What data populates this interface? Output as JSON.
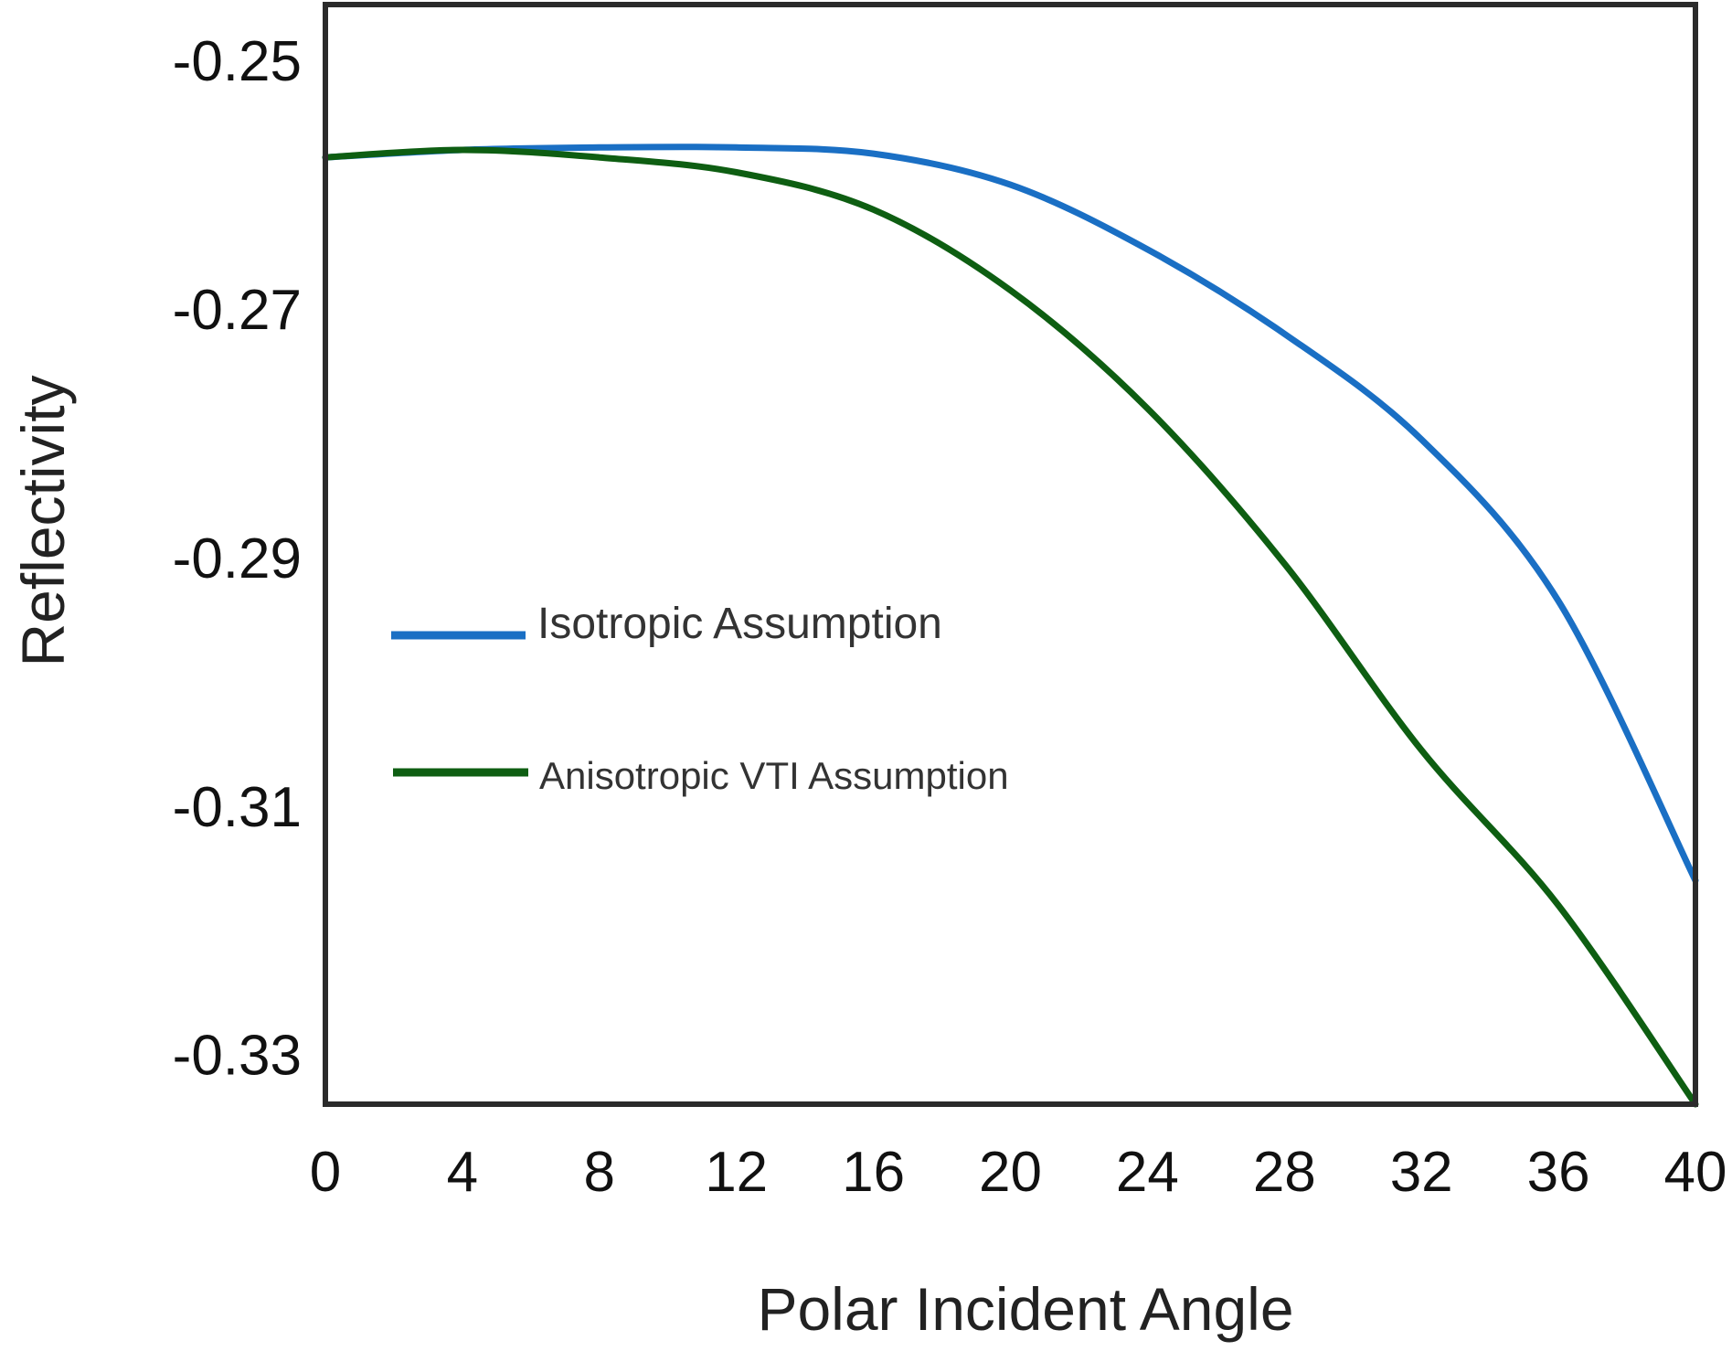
{
  "chart_data": {
    "type": "line",
    "title": "",
    "xlabel": "Polar Incident Angle",
    "ylabel": "Reflectivity",
    "xlim": [
      0,
      40
    ],
    "ylim": [
      -0.334,
      -0.2455
    ],
    "x_ticks": [
      0,
      4,
      8,
      12,
      16,
      20,
      24,
      28,
      32,
      36,
      40
    ],
    "x_tick_labels": [
      "0",
      "4",
      "8",
      "12",
      "16",
      "20",
      "24",
      "28",
      "32",
      "36",
      "40"
    ],
    "y_ticks": [
      -0.25,
      -0.27,
      -0.29,
      -0.31,
      -0.33
    ],
    "y_tick_labels": [
      "-0.25",
      "-0.27",
      "-0.29",
      "-0.31",
      "-0.33"
    ],
    "grid": false,
    "legend_position": "center-left",
    "series": [
      {
        "name": "Isotropic Assumption",
        "color": "#1a6fc4",
        "x": [
          0,
          4,
          8,
          12,
          16,
          20,
          24,
          28,
          32,
          36,
          40
        ],
        "y": [
          -0.2578,
          -0.2572,
          -0.257,
          -0.257,
          -0.2575,
          -0.26,
          -0.2652,
          -0.272,
          -0.2805,
          -0.2935,
          -0.316
        ]
      },
      {
        "name": "Anisotropic VTI Assumption",
        "color": "#0e5e12",
        "x": [
          0,
          4,
          8,
          12,
          16,
          20,
          24,
          28,
          32,
          36,
          40
        ],
        "y": [
          -0.2578,
          -0.2572,
          -0.2578,
          -0.259,
          -0.262,
          -0.2685,
          -0.278,
          -0.2905,
          -0.3055,
          -0.318,
          -0.334
        ]
      }
    ]
  }
}
